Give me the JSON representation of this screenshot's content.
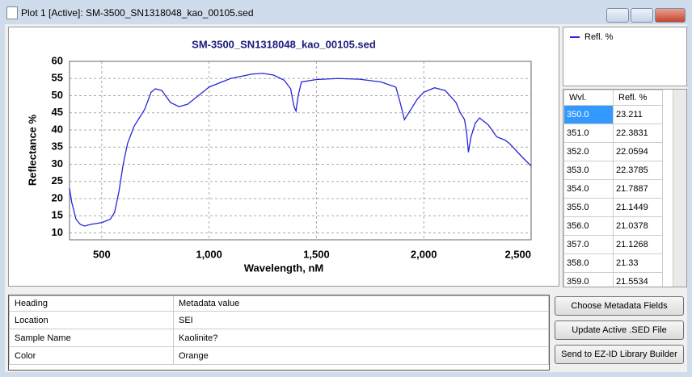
{
  "window": {
    "title": "Plot 1 [Active]: SM-3500_SN1318048_kao_00105.sed"
  },
  "chart_data": {
    "type": "line",
    "title": "SM-3500_SN1318048_kao_00105.sed",
    "x_label": "Wavelength, nM",
    "y_label": "Reflectance %",
    "x": [
      350,
      360,
      380,
      400,
      420,
      450,
      500,
      540,
      560,
      580,
      600,
      620,
      650,
      700,
      730,
      750,
      780,
      820,
      860,
      900,
      950,
      1000,
      1100,
      1200,
      1250,
      1300,
      1350,
      1380,
      1395,
      1405,
      1415,
      1430,
      1500,
      1600,
      1700,
      1800,
      1870,
      1890,
      1910,
      1930,
      1970,
      2000,
      2050,
      2100,
      2150,
      2170,
      2190,
      2200,
      2208,
      2220,
      2240,
      2260,
      2300,
      2340,
      2380,
      2400,
      2430,
      2460,
      2500
    ],
    "series": [
      {
        "name": "Refl. %",
        "color": "#2626d9",
        "values": [
          23,
          19,
          14,
          12.5,
          12,
          12.5,
          13,
          14,
          16,
          22,
          30,
          36,
          41,
          46,
          51,
          52,
          51.5,
          48,
          46.8,
          47.5,
          50,
          52.5,
          55,
          56.3,
          56.5,
          56,
          54.5,
          52,
          47,
          45.5,
          50,
          54,
          54.7,
          55,
          54.8,
          54,
          52.5,
          48,
          43,
          45,
          49,
          51,
          52.3,
          51.5,
          48,
          45,
          43,
          39,
          33.5,
          38,
          42,
          43.5,
          41.5,
          38,
          37,
          36,
          34,
          32,
          29.5
        ]
      }
    ],
    "xlim": [
      350,
      2500
    ],
    "ylim": [
      8,
      60
    ],
    "xticks": [
      500,
      {
        "value": 1000,
        "label": "1,000"
      },
      {
        "value": 1500,
        "label": "1,500"
      },
      {
        "value": 2000,
        "label": "2,000"
      },
      {
        "value": 2500,
        "label": "2,500"
      }
    ],
    "yticks": [
      10,
      15,
      20,
      25,
      30,
      35,
      40,
      45,
      50,
      55,
      60
    ],
    "grid": true
  },
  "table": {
    "columns": [
      "Wvl.",
      "Refl. %"
    ],
    "rows": [
      [
        "350.0",
        "23.211"
      ],
      [
        "351.0",
        "22.3831"
      ],
      [
        "352.0",
        "22.0594"
      ],
      [
        "353.0",
        "22.3785"
      ],
      [
        "354.0",
        "21.7887"
      ],
      [
        "355.0",
        "21.1449"
      ],
      [
        "356.0",
        "21.0378"
      ],
      [
        "357.0",
        "21.1268"
      ],
      [
        "358.0",
        "21.33"
      ],
      [
        "359.0",
        "21.5534"
      ]
    ]
  },
  "metadata": {
    "columns": [
      "Heading",
      "Metadata value"
    ],
    "rows": [
      [
        "Location",
        "SEI"
      ],
      [
        "Sample Name",
        "Kaolinite?"
      ],
      [
        "Color",
        "Orange"
      ]
    ]
  },
  "buttons": [
    "Choose Metadata Fields",
    "Update Active .SED File",
    "Send to EZ-ID Library Builder"
  ]
}
